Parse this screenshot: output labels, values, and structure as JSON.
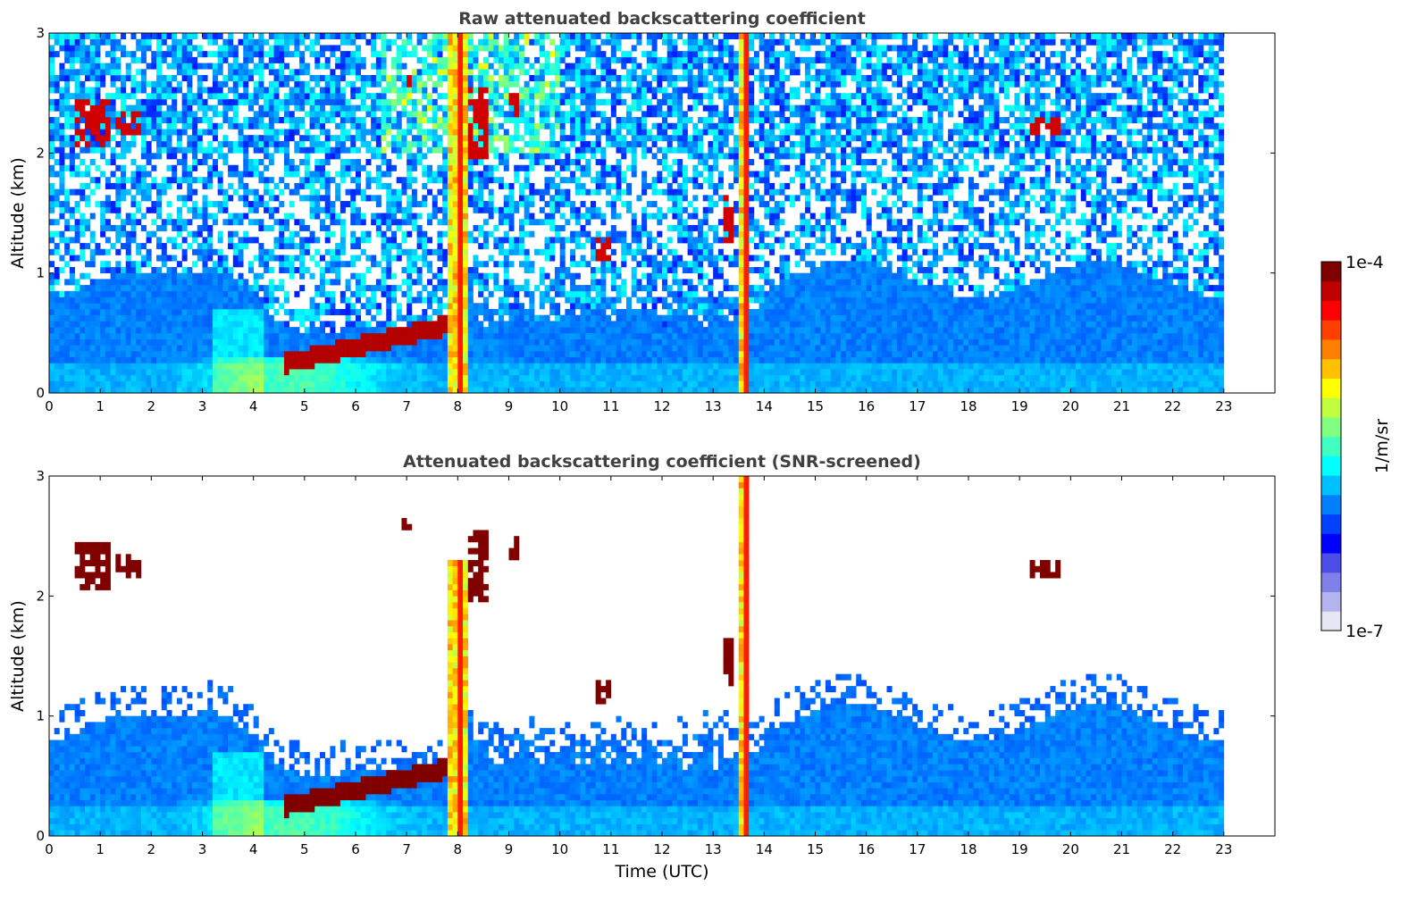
{
  "chart_data": [
    {
      "type": "heatmap",
      "title": "Raw attenuated backscattering coefficient",
      "xlabel": "",
      "ylabel": "Altitude (km)",
      "xlim": [
        0,
        24
      ],
      "ylim": [
        0,
        3
      ],
      "xticks": [
        "0",
        "1",
        "2",
        "3",
        "4",
        "5",
        "6",
        "7",
        "8",
        "9",
        "10",
        "11",
        "12",
        "13",
        "14",
        "15",
        "16",
        "17",
        "18",
        "19",
        "20",
        "21",
        "22",
        "23"
      ],
      "yticks": [
        "0",
        "1",
        "2",
        "3"
      ],
      "data_extent_hours": [
        0,
        23
      ],
      "features": [
        {
          "name": "boundary layer aerosol",
          "x": [
            0,
            23
          ],
          "y": [
            0,
            1.0
          ]
        },
        {
          "name": "low cloud layer",
          "x": [
            4.6,
            7.9
          ],
          "y": [
            0.3,
            0.6
          ]
        },
        {
          "name": "precipitation column",
          "x": [
            7.8,
            8.3
          ],
          "y": [
            0,
            3
          ]
        },
        {
          "name": "precipitation column",
          "x": [
            13.5,
            13.8
          ],
          "y": [
            0,
            3
          ]
        },
        {
          "name": "elevated cloud",
          "x": [
            0.3,
            1.8
          ],
          "y": [
            1.9,
            2.5
          ]
        },
        {
          "name": "elevated cloud",
          "x": [
            8.0,
            9.3
          ],
          "y": [
            1.9,
            2.6
          ]
        },
        {
          "name": "elevated cloud",
          "x": [
            19.2,
            20.0
          ],
          "y": [
            2.1,
            2.3
          ]
        }
      ]
    },
    {
      "type": "heatmap",
      "title": "Attenuated backscattering coefficient (SNR-screened)",
      "xlabel": "Time (UTC)",
      "ylabel": "Altitude (km)",
      "xlim": [
        0,
        24
      ],
      "ylim": [
        0,
        3
      ],
      "xticks": [
        "0",
        "1",
        "2",
        "3",
        "4",
        "5",
        "6",
        "7",
        "8",
        "9",
        "10",
        "11",
        "12",
        "13",
        "14",
        "15",
        "16",
        "17",
        "18",
        "19",
        "20",
        "21",
        "22",
        "23"
      ],
      "yticks": [
        "0",
        "1",
        "2",
        "3"
      ],
      "data_extent_hours": [
        0,
        23
      ],
      "features": [
        {
          "name": "boundary layer aerosol (screened)",
          "x": [
            0,
            23
          ],
          "y": [
            0,
            1.2
          ]
        },
        {
          "name": "low cloud layer",
          "x": [
            4.6,
            7.9
          ],
          "y": [
            0.3,
            0.6
          ]
        },
        {
          "name": "precipitation column",
          "x": [
            7.8,
            8.3
          ],
          "y": [
            0,
            2.3
          ]
        },
        {
          "name": "precipitation column",
          "x": [
            13.5,
            13.8
          ],
          "y": [
            0,
            3
          ]
        },
        {
          "name": "elevated cloud",
          "x": [
            0.3,
            1.8
          ],
          "y": [
            1.9,
            2.5
          ]
        },
        {
          "name": "elevated cloud",
          "x": [
            19.2,
            20.0
          ],
          "y": [
            2.1,
            2.3
          ]
        }
      ]
    }
  ],
  "colorbar": {
    "label": "1/m/sr",
    "max_label": "1e-4",
    "min_label": "1e-7",
    "colormap": "jet",
    "colors": [
      "#e6e6f5",
      "#b3b3ef",
      "#8080ea",
      "#4d4de8",
      "#0000ff",
      "#0040ff",
      "#0080ff",
      "#00c0ff",
      "#00ffff",
      "#40ffc0",
      "#80ff80",
      "#c0ff40",
      "#ffff00",
      "#ffc000",
      "#ff8000",
      "#ff4000",
      "#ff0000",
      "#c00000",
      "#800000"
    ]
  }
}
